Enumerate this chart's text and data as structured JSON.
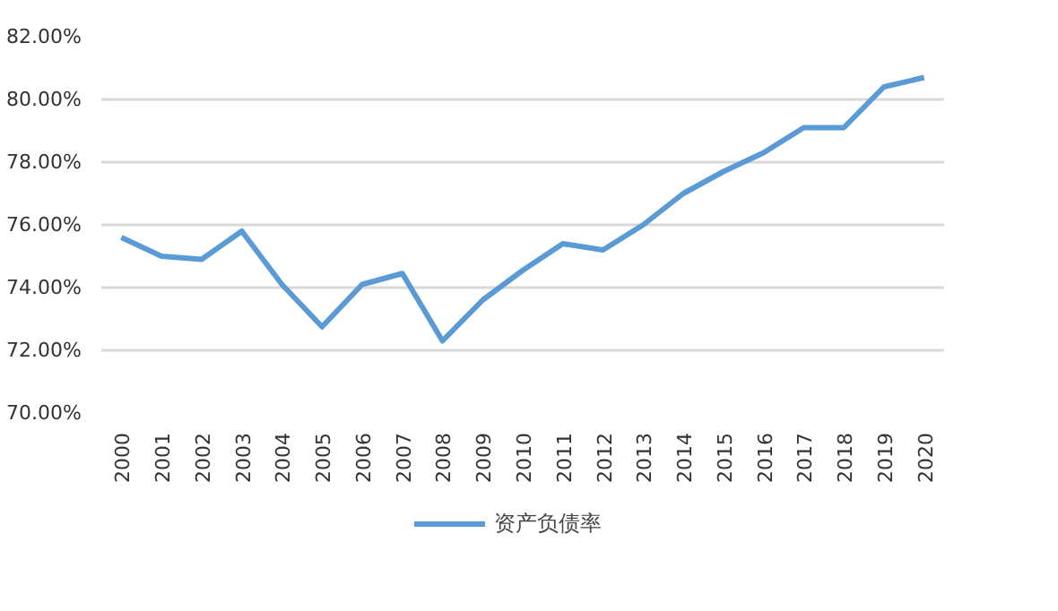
{
  "chart_data": {
    "type": "line",
    "categories": [
      "2000",
      "2001",
      "2002",
      "2003",
      "2004",
      "2005",
      "2006",
      "2007",
      "2008",
      "2009",
      "2010",
      "2011",
      "2012",
      "2013",
      "2014",
      "2015",
      "2016",
      "2017",
      "2018",
      "2019",
      "2020"
    ],
    "series": [
      {
        "name": "资产负债率",
        "color": "#5b9bd5",
        "values": [
          75.6,
          75.0,
          74.9,
          75.8,
          74.1,
          72.75,
          74.1,
          74.45,
          72.3,
          73.6,
          74.55,
          75.4,
          75.2,
          76.0,
          77.0,
          77.7,
          78.3,
          79.1,
          79.1,
          80.4,
          80.7
        ]
      }
    ],
    "ylim": [
      70,
      82
    ],
    "yticks": [
      {
        "value": 70,
        "label": "70.00%"
      },
      {
        "value": 72,
        "label": "72.00%"
      },
      {
        "value": 74,
        "label": "74.00%"
      },
      {
        "value": 76,
        "label": "76.00%"
      },
      {
        "value": 78,
        "label": "78.00%"
      },
      {
        "value": 80,
        "label": "80.00%"
      },
      {
        "value": 82,
        "label": "82.00%"
      }
    ],
    "grid": "y",
    "legend": "bottom",
    "marker": "none",
    "line_style": "solid"
  }
}
